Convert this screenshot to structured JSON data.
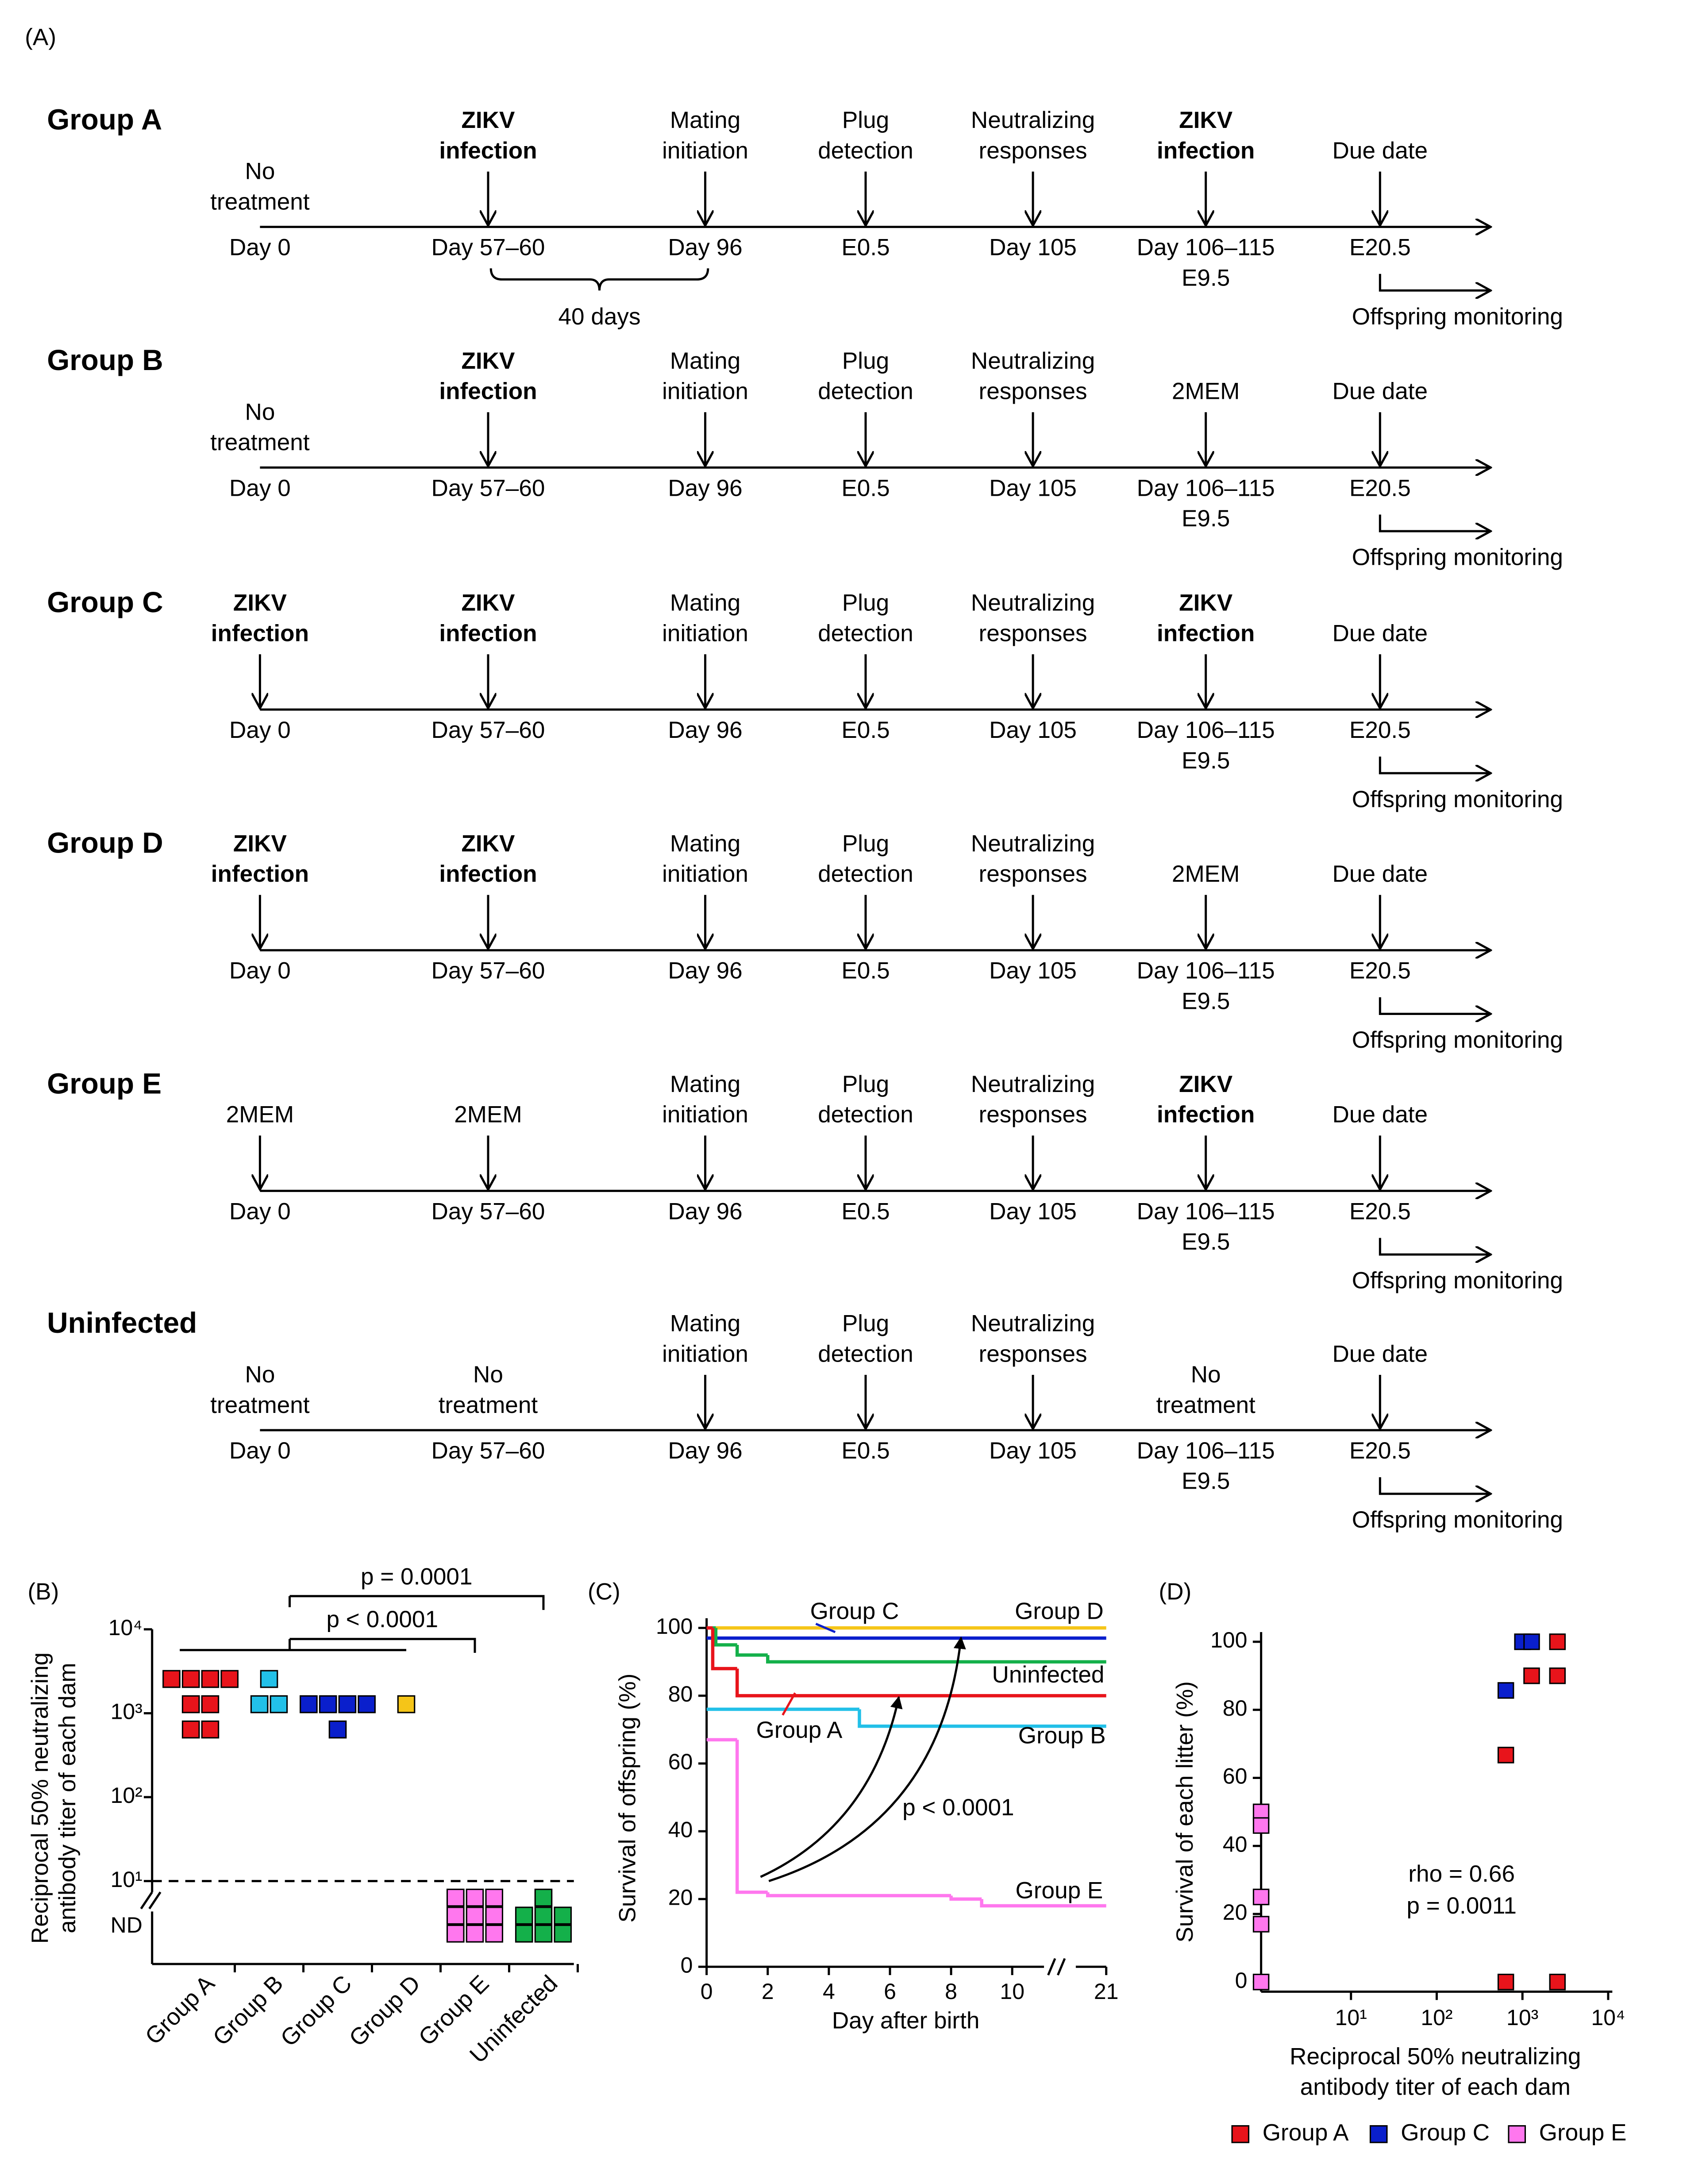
{
  "panel_a": {
    "label": "(A)",
    "axis_labels": [
      [
        "Day 0"
      ],
      [
        "Day 57–60"
      ],
      [
        "Day 96"
      ],
      [
        "E0.5"
      ],
      [
        "Day 105"
      ],
      [
        "Day 106–115",
        "E9.5"
      ],
      [
        "E20.5"
      ]
    ],
    "offspring_label": "Offspring monitoring",
    "groups": [
      {
        "name": "Group A",
        "color": "#e8141b",
        "interval_label": "40 days",
        "events": [
          {
            "label": [
              "No",
              "treatment"
            ],
            "arrow": false
          },
          {
            "label": [
              "ZIKV",
              "infection"
            ],
            "bold": true,
            "arrow": true
          },
          {
            "label": [
              "Mating",
              "initiation"
            ],
            "arrow": true
          },
          {
            "label": [
              "Plug",
              "detection"
            ],
            "arrow": true
          },
          {
            "label": [
              "Neutralizing",
              "responses"
            ],
            "arrow": true
          },
          {
            "label": [
              "ZIKV",
              "infection"
            ],
            "bold": true,
            "arrow": true
          },
          {
            "label": [
              "Due date"
            ],
            "arrow": true
          }
        ]
      },
      {
        "name": "Group B",
        "color": "#22c0e8",
        "events": [
          {
            "label": [
              "No",
              "treatment"
            ],
            "arrow": false
          },
          {
            "label": [
              "ZIKV",
              "infection"
            ],
            "bold": true,
            "arrow": true
          },
          {
            "label": [
              "Mating",
              "initiation"
            ],
            "arrow": true
          },
          {
            "label": [
              "Plug",
              "detection"
            ],
            "arrow": true
          },
          {
            "label": [
              "Neutralizing",
              "responses"
            ],
            "arrow": true
          },
          {
            "label": [
              "2MEM"
            ],
            "arrow": true
          },
          {
            "label": [
              "Due date"
            ],
            "arrow": true
          }
        ]
      },
      {
        "name": "Group C",
        "color": "#0a1fcc",
        "events": [
          {
            "label": [
              "ZIKV",
              "infection"
            ],
            "bold": true,
            "arrow": true
          },
          {
            "label": [
              "ZIKV",
              "infection"
            ],
            "bold": true,
            "arrow": true
          },
          {
            "label": [
              "Mating",
              "initiation"
            ],
            "arrow": true
          },
          {
            "label": [
              "Plug",
              "detection"
            ],
            "arrow": true
          },
          {
            "label": [
              "Neutralizing",
              "responses"
            ],
            "arrow": true
          },
          {
            "label": [
              "ZIKV",
              "infection"
            ],
            "bold": true,
            "arrow": true
          },
          {
            "label": [
              "Due date"
            ],
            "arrow": true
          }
        ]
      },
      {
        "name": "Group D",
        "color": "#f5c518",
        "events": [
          {
            "label": [
              "ZIKV",
              "infection"
            ],
            "bold": true,
            "arrow": true
          },
          {
            "label": [
              "ZIKV",
              "infection"
            ],
            "bold": true,
            "arrow": true
          },
          {
            "label": [
              "Mating",
              "initiation"
            ],
            "arrow": true
          },
          {
            "label": [
              "Plug",
              "detection"
            ],
            "arrow": true
          },
          {
            "label": [
              "Neutralizing",
              "responses"
            ],
            "arrow": true
          },
          {
            "label": [
              "2MEM"
            ],
            "arrow": true
          },
          {
            "label": [
              "Due date"
            ],
            "arrow": true
          }
        ]
      },
      {
        "name": "Group E",
        "color": "#ff77ee",
        "events": [
          {
            "label": [
              "2MEM"
            ],
            "arrow": true
          },
          {
            "label": [
              "2MEM"
            ],
            "arrow": true
          },
          {
            "label": [
              "Mating",
              "initiation"
            ],
            "arrow": true
          },
          {
            "label": [
              "Plug",
              "detection"
            ],
            "arrow": true
          },
          {
            "label": [
              "Neutralizing",
              "responses"
            ],
            "arrow": true
          },
          {
            "label": [
              "ZIKV",
              "infection"
            ],
            "bold": true,
            "arrow": true
          },
          {
            "label": [
              "Due date"
            ],
            "arrow": true
          }
        ]
      },
      {
        "name": "Uninfected",
        "color": "#14b04a",
        "events": [
          {
            "label": [
              "No",
              "treatment"
            ],
            "arrow": false
          },
          {
            "label": [
              "No",
              "treatment"
            ],
            "arrow": false
          },
          {
            "label": [
              "Mating",
              "initiation"
            ],
            "arrow": true
          },
          {
            "label": [
              "Plug",
              "detection"
            ],
            "arrow": true
          },
          {
            "label": [
              "Neutralizing",
              "responses"
            ],
            "arrow": true
          },
          {
            "label": [
              "No",
              "treatment"
            ],
            "arrow": false
          },
          {
            "label": [
              "Due date"
            ],
            "arrow": true
          }
        ]
      }
    ]
  },
  "chart_data": [
    {
      "type": "dot",
      "label": "(B)",
      "y_label": [
        "Reciprocal 50% neutralizing",
        "antibody titer of each dam"
      ],
      "categories": [
        "Group A",
        "Group B",
        "Group C",
        "Group D",
        "Group E",
        "Uninfected"
      ],
      "colors": [
        "#e8141b",
        "#22c0e8",
        "#0a1fcc",
        "#f5c518",
        "#ff77ee",
        "#14b04a"
      ],
      "values": [
        [
          2560,
          2560,
          2560,
          2560,
          1280,
          1280,
          640,
          640
        ],
        [
          2560,
          1280,
          1280
        ],
        [
          1280,
          1280,
          1280,
          1280,
          640
        ],
        [
          1280
        ],
        [
          null,
          null,
          null,
          null,
          null,
          null,
          null,
          null,
          null
        ],
        [
          null,
          null,
          null,
          null,
          null,
          null,
          null
        ]
      ],
      "ylim": [
        10,
        10000
      ],
      "log_y": true,
      "yticks": [
        {
          "value": 10,
          "label": "10¹"
        },
        {
          "value": 100,
          "label": "10²"
        },
        {
          "value": 1000,
          "label": "10³"
        },
        {
          "value": 10000,
          "label": "10⁴"
        }
      ],
      "nd_label": "ND",
      "comparisons": [
        {
          "label": "p = 0.0001"
        },
        {
          "label": "p < 0.0001"
        }
      ]
    },
    {
      "type": "step",
      "label": "(C)",
      "x_label": "Day after birth",
      "y_label": "Survival of offspring (%)",
      "xlim": [
        0,
        21
      ],
      "xticks": [
        0,
        2,
        4,
        6,
        8,
        10,
        21
      ],
      "x_break": true,
      "ylim": [
        0,
        100
      ],
      "yticks": [
        0,
        20,
        40,
        60,
        80,
        100
      ],
      "annotation": "p < 0.0001",
      "series": [
        {
          "name": "Group D",
          "color": "#f5c518",
          "x": [
            0
          ],
          "values": [
            100
          ]
        },
        {
          "name": "Group C",
          "color": "#0a1fcc",
          "x": [
            0
          ],
          "values": [
            97
          ]
        },
        {
          "name": "Uninfected",
          "color": "#14b04a",
          "x": [
            0,
            0.3,
            1,
            2
          ],
          "values": [
            100,
            95,
            92,
            90
          ]
        },
        {
          "name": "Group A",
          "color": "#e8141b",
          "x": [
            0,
            0.2,
            1
          ],
          "values": [
            100,
            88,
            80
          ]
        },
        {
          "name": "Group B",
          "color": "#22c0e8",
          "x": [
            0,
            5
          ],
          "values": [
            76,
            71
          ]
        },
        {
          "name": "Group E",
          "color": "#ff77ee",
          "x": [
            0,
            1,
            2,
            8,
            9
          ],
          "values": [
            67,
            22,
            21,
            20,
            18
          ]
        }
      ]
    },
    {
      "type": "scatter",
      "label": "(D)",
      "x_label": [
        "Reciprocal 50% neutralizing",
        "antibody titer of each dam"
      ],
      "y_label": "Survival of each litter (%)",
      "xlim": [
        1,
        10000
      ],
      "log_x": true,
      "xticks": [
        {
          "value": 10,
          "label": "10¹"
        },
        {
          "value": 100,
          "label": "10²"
        },
        {
          "value": 1000,
          "label": "10³"
        },
        {
          "value": 10000,
          "label": "10⁴"
        }
      ],
      "ylim": [
        0,
        100
      ],
      "yticks": [
        0,
        20,
        40,
        60,
        80,
        100
      ],
      "annotations": [
        "rho = 0.66",
        "p = 0.0011"
      ],
      "series": [
        {
          "name": "Group A",
          "color": "#e8141b",
          "x": [
            640,
            640,
            1280,
            2560,
            2560,
            2560
          ],
          "values": [
            66.7,
            0,
            90,
            100,
            90,
            0
          ]
        },
        {
          "name": "Group C",
          "color": "#0a1fcc",
          "x": [
            640,
            1000,
            1280
          ],
          "values": [
            85.7,
            100,
            100
          ]
        },
        {
          "name": "Group E",
          "color": "#ff77ee",
          "x": [
            null,
            null,
            null,
            null,
            null
          ],
          "values": [
            50,
            46,
            25,
            17,
            0
          ]
        }
      ]
    }
  ]
}
